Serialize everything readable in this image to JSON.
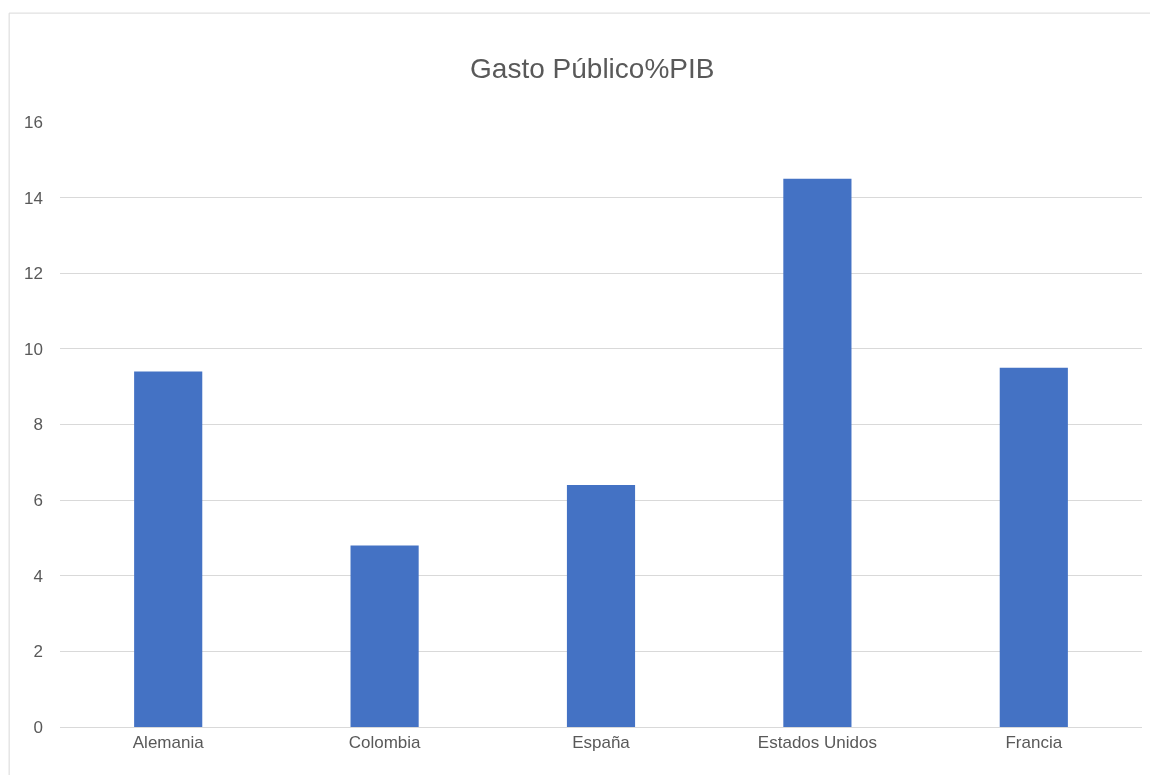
{
  "chart_data": {
    "type": "bar",
    "title": "Gasto Público%PIB",
    "categories": [
      "Alemania",
      "Colombia",
      "España",
      "Estados Unidos",
      "Francia"
    ],
    "values": [
      9.4,
      4.8,
      6.4,
      14.5,
      9.5
    ],
    "color": "#4472c4",
    "ylim": [
      0,
      16
    ],
    "yticks": [
      0,
      2,
      4,
      6,
      8,
      10,
      12,
      14,
      16
    ],
    "grid": "y"
  }
}
